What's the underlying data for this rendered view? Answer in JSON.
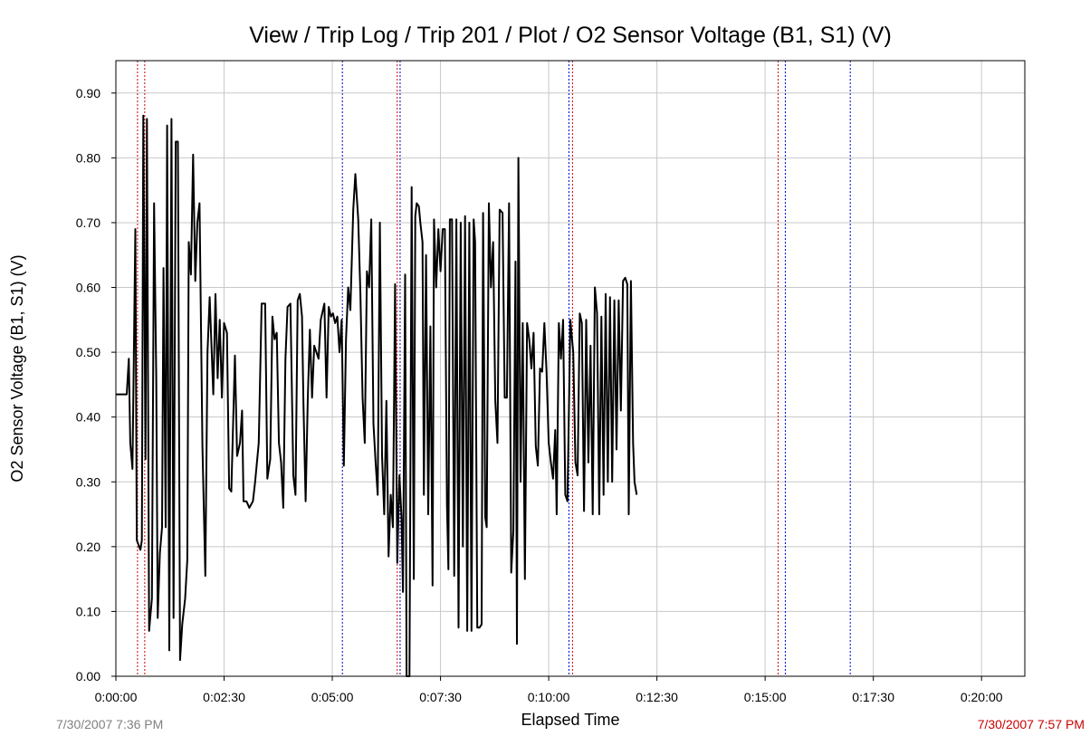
{
  "chart_data": {
    "type": "line",
    "title": "View / Trip Log / Trip 201 / Plot / O2 Sensor Voltage (B1, S1) (V)",
    "xlabel": "Elapsed Time",
    "ylabel": "O2 Sensor Voltage (B1, S1) (V)",
    "xlim": [
      0,
      1260
    ],
    "ylim": [
      0,
      0.95
    ],
    "x_ticks": [
      {
        "value": 0,
        "label": "0:00:00"
      },
      {
        "value": 150,
        "label": "0:02:30"
      },
      {
        "value": 300,
        "label": "0:05:00"
      },
      {
        "value": 450,
        "label": "0:07:30"
      },
      {
        "value": 600,
        "label": "0:10:00"
      },
      {
        "value": 750,
        "label": "0:12:30"
      },
      {
        "value": 900,
        "label": "0:15:00"
      },
      {
        "value": 1050,
        "label": "0:17:30"
      },
      {
        "value": 1200,
        "label": "0:20:00"
      }
    ],
    "y_ticks": [
      {
        "value": 0.0,
        "label": "0.00"
      },
      {
        "value": 0.1,
        "label": "0.10"
      },
      {
        "value": 0.2,
        "label": "0.20"
      },
      {
        "value": 0.3,
        "label": "0.30"
      },
      {
        "value": 0.4,
        "label": "0.40"
      },
      {
        "value": 0.5,
        "label": "0.50"
      },
      {
        "value": 0.6,
        "label": "0.60"
      },
      {
        "value": 0.7,
        "label": "0.70"
      },
      {
        "value": 0.8,
        "label": "0.80"
      },
      {
        "value": 0.9,
        "label": "0.90"
      }
    ],
    "grid": true,
    "start_label": "7/30/2007 7:36 PM",
    "end_label": "7/30/2007 7:57 PM",
    "start_label_color": "#808080",
    "end_label_color": "#cc0000",
    "line_color": "#000000",
    "markers": [
      {
        "x": 30,
        "color": "#cc0000"
      },
      {
        "x": 40,
        "color": "#cc0000"
      },
      {
        "x": 314,
        "color": "#0000cc"
      },
      {
        "x": 390,
        "color": "#cc0000"
      },
      {
        "x": 394,
        "color": "#0000cc"
      },
      {
        "x": 628,
        "color": "#0000cc"
      },
      {
        "x": 633,
        "color": "#cc0000"
      },
      {
        "x": 918,
        "color": "#cc0000"
      },
      {
        "x": 928,
        "color": "#0000cc"
      },
      {
        "x": 1018,
        "color": "#0000cc"
      }
    ],
    "series": [
      {
        "values": [
          [
            0,
            0.435
          ],
          [
            15,
            0.435
          ],
          [
            18,
            0.49
          ],
          [
            20,
            0.36
          ],
          [
            23,
            0.32
          ],
          [
            25,
            0.5
          ],
          [
            27,
            0.69
          ],
          [
            29,
            0.21
          ],
          [
            34,
            0.195
          ],
          [
            36,
            0.21
          ],
          [
            38,
            0.865
          ],
          [
            41,
            0.335
          ],
          [
            43,
            0.86
          ],
          [
            46,
            0.07
          ],
          [
            50,
            0.12
          ],
          [
            53,
            0.73
          ],
          [
            56,
            0.46
          ],
          [
            58,
            0.09
          ],
          [
            61,
            0.19
          ],
          [
            64,
            0.23
          ],
          [
            66,
            0.63
          ],
          [
            69,
            0.23
          ],
          [
            71,
            0.85
          ],
          [
            74,
            0.04
          ],
          [
            77,
            0.86
          ],
          [
            80,
            0.09
          ],
          [
            83,
            0.825
          ],
          [
            86,
            0.825
          ],
          [
            89,
            0.025
          ],
          [
            92,
            0.08
          ],
          [
            96,
            0.12
          ],
          [
            99,
            0.18
          ],
          [
            101,
            0.67
          ],
          [
            104,
            0.62
          ],
          [
            107,
            0.805
          ],
          [
            110,
            0.61
          ],
          [
            113,
            0.7
          ],
          [
            116,
            0.73
          ],
          [
            120,
            0.355
          ],
          [
            124,
            0.155
          ],
          [
            127,
            0.5
          ],
          [
            130,
            0.585
          ],
          [
            135,
            0.435
          ],
          [
            138,
            0.59
          ],
          [
            141,
            0.46
          ],
          [
            144,
            0.55
          ],
          [
            147,
            0.43
          ],
          [
            150,
            0.545
          ],
          [
            154,
            0.53
          ],
          [
            157,
            0.29
          ],
          [
            160,
            0.285
          ],
          [
            165,
            0.495
          ],
          [
            168,
            0.34
          ],
          [
            172,
            0.36
          ],
          [
            175,
            0.41
          ],
          [
            177,
            0.27
          ],
          [
            181,
            0.27
          ],
          [
            185,
            0.26
          ],
          [
            190,
            0.27
          ],
          [
            193,
            0.3
          ],
          [
            198,
            0.36
          ],
          [
            202,
            0.575
          ],
          [
            207,
            0.575
          ],
          [
            210,
            0.305
          ],
          [
            214,
            0.335
          ],
          [
            217,
            0.555
          ],
          [
            220,
            0.52
          ],
          [
            223,
            0.53
          ],
          [
            226,
            0.36
          ],
          [
            229,
            0.33
          ],
          [
            232,
            0.26
          ],
          [
            235,
            0.49
          ],
          [
            238,
            0.57
          ],
          [
            242,
            0.575
          ],
          [
            246,
            0.31
          ],
          [
            249,
            0.28
          ],
          [
            252,
            0.58
          ],
          [
            255,
            0.59
          ],
          [
            258,
            0.555
          ],
          [
            260,
            0.42
          ],
          [
            263,
            0.27
          ],
          [
            266,
            0.43
          ],
          [
            269,
            0.535
          ],
          [
            272,
            0.43
          ],
          [
            275,
            0.51
          ],
          [
            278,
            0.5
          ],
          [
            281,
            0.49
          ],
          [
            284,
            0.55
          ],
          [
            289,
            0.575
          ],
          [
            292,
            0.43
          ],
          [
            295,
            0.57
          ],
          [
            298,
            0.555
          ],
          [
            301,
            0.56
          ],
          [
            304,
            0.545
          ],
          [
            307,
            0.555
          ],
          [
            310,
            0.5
          ],
          [
            313,
            0.55
          ],
          [
            316,
            0.325
          ],
          [
            319,
            0.52
          ],
          [
            322,
            0.6
          ],
          [
            325,
            0.565
          ],
          [
            329,
            0.72
          ],
          [
            332,
            0.775
          ],
          [
            336,
            0.705
          ],
          [
            339,
            0.59
          ],
          [
            342,
            0.43
          ],
          [
            345,
            0.36
          ],
          [
            348,
            0.625
          ],
          [
            351,
            0.6
          ],
          [
            354,
            0.705
          ],
          [
            357,
            0.39
          ],
          [
            360,
            0.33
          ],
          [
            363,
            0.28
          ],
          [
            366,
            0.7
          ],
          [
            369,
            0.34
          ],
          [
            372,
            0.25
          ],
          [
            375,
            0.425
          ],
          [
            378,
            0.185
          ],
          [
            381,
            0.28
          ],
          [
            384,
            0.23
          ],
          [
            387,
            0.605
          ],
          [
            390,
            0.175
          ],
          [
            393,
            0.31
          ],
          [
            396,
            0.245
          ],
          [
            398,
            0.13
          ],
          [
            401,
            0.62
          ],
          [
            403,
            0.0
          ],
          [
            407,
            0.0
          ],
          [
            410,
            0.755
          ],
          [
            413,
            0.15
          ],
          [
            415,
            0.71
          ],
          [
            417,
            0.73
          ],
          [
            420,
            0.725
          ],
          [
            422,
            0.7
          ],
          [
            425,
            0.67
          ],
          [
            427,
            0.28
          ],
          [
            430,
            0.65
          ],
          [
            433,
            0.25
          ],
          [
            436,
            0.54
          ],
          [
            439,
            0.14
          ],
          [
            441,
            0.705
          ],
          [
            444,
            0.6
          ],
          [
            447,
            0.69
          ],
          [
            450,
            0.625
          ],
          [
            453,
            0.69
          ],
          [
            456,
            0.69
          ],
          [
            459,
            0.265
          ],
          [
            461,
            0.165
          ],
          [
            463,
            0.705
          ],
          [
            466,
            0.705
          ],
          [
            469,
            0.155
          ],
          [
            472,
            0.705
          ],
          [
            475,
            0.075
          ],
          [
            478,
            0.7
          ],
          [
            481,
            0.2
          ],
          [
            484,
            0.71
          ],
          [
            487,
            0.07
          ],
          [
            490,
            0.7
          ],
          [
            493,
            0.07
          ],
          [
            496,
            0.705
          ],
          [
            498,
            0.67
          ],
          [
            501,
            0.075
          ],
          [
            504,
            0.075
          ],
          [
            507,
            0.08
          ],
          [
            509,
            0.715
          ],
          [
            512,
            0.245
          ],
          [
            514,
            0.23
          ],
          [
            517,
            0.73
          ],
          [
            520,
            0.6
          ],
          [
            523,
            0.67
          ],
          [
            526,
            0.425
          ],
          [
            529,
            0.36
          ],
          [
            532,
            0.72
          ],
          [
            536,
            0.715
          ],
          [
            539,
            0.43
          ],
          [
            542,
            0.43
          ],
          [
            545,
            0.73
          ],
          [
            548,
            0.16
          ],
          [
            551,
            0.225
          ],
          [
            554,
            0.64
          ],
          [
            556,
            0.05
          ],
          [
            558,
            0.8
          ],
          [
            561,
            0.3
          ],
          [
            564,
            0.545
          ],
          [
            567,
            0.15
          ],
          [
            570,
            0.545
          ],
          [
            573,
            0.52
          ],
          [
            576,
            0.475
          ],
          [
            579,
            0.53
          ],
          [
            582,
            0.355
          ],
          [
            585,
            0.325
          ],
          [
            588,
            0.475
          ],
          [
            591,
            0.47
          ],
          [
            594,
            0.545
          ],
          [
            597,
            0.47
          ],
          [
            600,
            0.36
          ],
          [
            603,
            0.33
          ],
          [
            606,
            0.305
          ],
          [
            609,
            0.38
          ],
          [
            611,
            0.25
          ],
          [
            614,
            0.545
          ],
          [
            617,
            0.49
          ],
          [
            620,
            0.55
          ],
          [
            623,
            0.28
          ],
          [
            626,
            0.27
          ],
          [
            630,
            0.55
          ],
          [
            634,
            0.5
          ],
          [
            637,
            0.33
          ],
          [
            640,
            0.31
          ],
          [
            643,
            0.56
          ],
          [
            646,
            0.545
          ],
          [
            649,
            0.255
          ],
          [
            652,
            0.55
          ],
          [
            655,
            0.33
          ],
          [
            658,
            0.51
          ],
          [
            661,
            0.25
          ],
          [
            664,
            0.6
          ],
          [
            667,
            0.56
          ],
          [
            670,
            0.25
          ],
          [
            673,
            0.555
          ],
          [
            676,
            0.28
          ],
          [
            679,
            0.59
          ],
          [
            682,
            0.3
          ],
          [
            685,
            0.585
          ],
          [
            688,
            0.3
          ],
          [
            691,
            0.58
          ],
          [
            694,
            0.35
          ],
          [
            697,
            0.58
          ],
          [
            700,
            0.41
          ],
          [
            703,
            0.61
          ],
          [
            706,
            0.615
          ],
          [
            709,
            0.605
          ],
          [
            711,
            0.25
          ],
          [
            714,
            0.61
          ],
          [
            717,
            0.36
          ],
          [
            719,
            0.3
          ],
          [
            722,
            0.28
          ]
        ]
      }
    ]
  }
}
